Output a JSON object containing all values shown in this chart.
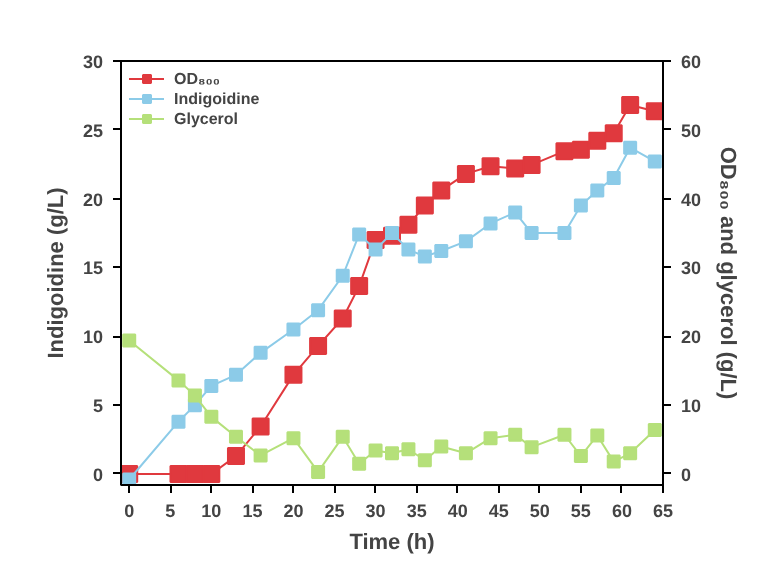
{
  "chart_data": {
    "type": "line",
    "xlabel": "Time (h)",
    "ylabel": "Indigoidine (g/L)",
    "y2label": "OD₈₀₀ and glycerol (g/L)",
    "x": [
      0,
      6,
      8,
      10,
      13,
      16,
      20,
      23,
      26,
      28,
      30,
      32,
      34,
      36,
      38,
      41,
      44,
      47,
      49,
      53,
      55,
      57,
      59,
      61,
      64
    ],
    "xlim": [
      -1,
      65
    ],
    "xticks": [
      0,
      5,
      10,
      15,
      20,
      25,
      30,
      35,
      40,
      45,
      50,
      55,
      60,
      65
    ],
    "ylim": [
      -0.8,
      30
    ],
    "yticks": [
      0,
      5,
      10,
      15,
      20,
      25,
      30
    ],
    "y2lim": [
      -1.6,
      60
    ],
    "y2ticks": [
      0,
      10,
      20,
      30,
      40,
      50,
      60
    ],
    "marker": "square",
    "line_style": "solid",
    "legend": "top left",
    "grid": false,
    "series": [
      {
        "name": "OD₈₀₀",
        "color": "#e0393e",
        "axis": "y2",
        "values": [
          0,
          0,
          0,
          0,
          2.6,
          6.9,
          14.4,
          18.6,
          22.6,
          27.3,
          34.0,
          34.6,
          36.2,
          39.0,
          41.2,
          43.6,
          44.7,
          44.4,
          44.9,
          46.9,
          47.1,
          48.4,
          49.5,
          53.6,
          52.7
        ]
      },
      {
        "name": "Indigoidine",
        "color": "#8ccbe8",
        "values": [
          -0.4,
          3.8,
          5.0,
          6.4,
          7.2,
          8.8,
          10.5,
          11.9,
          14.4,
          17.4,
          16.3,
          17.5,
          16.3,
          15.8,
          16.2,
          16.9,
          18.2,
          19.0,
          17.5,
          17.5,
          19.5,
          20.6,
          21.5,
          23.7,
          22.7
        ]
      },
      {
        "name": "Glycerol",
        "color": "#b5e07a",
        "axis": "y2",
        "values": [
          19.4,
          13.6,
          11.4,
          8.3,
          5.4,
          2.7,
          5.2,
          0.3,
          5.4,
          1.5,
          3.4,
          3.0,
          3.6,
          2.0,
          4.0,
          3.0,
          5.2,
          5.7,
          3.9,
          5.7,
          2.6,
          5.6,
          1.8,
          3.0,
          6.4
        ]
      }
    ]
  }
}
